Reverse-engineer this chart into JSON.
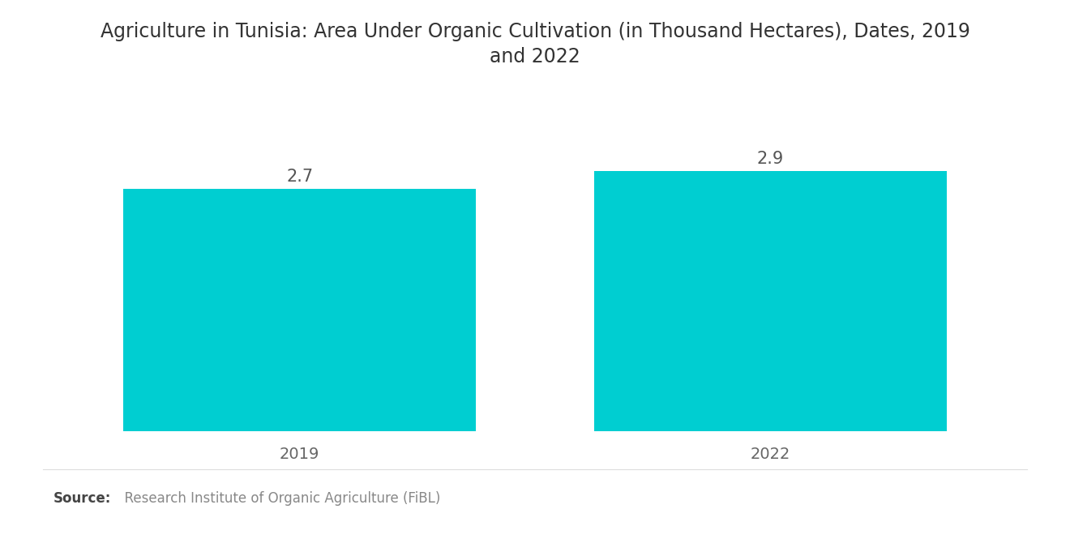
{
  "title": "Agriculture in Tunisia: Area Under Organic Cultivation (in Thousand Hectares), Dates, 2019\nand 2022",
  "categories": [
    "2019",
    "2022"
  ],
  "values": [
    2.7,
    2.9
  ],
  "bar_color": "#00CED1",
  "bar_positions": [
    1,
    3
  ],
  "bar_width": 1.5,
  "xlim": [
    0,
    4
  ],
  "value_label_fontsize": 15,
  "value_label_color": "#555555",
  "category_label_fontsize": 14,
  "category_label_color": "#666666",
  "title_fontsize": 17,
  "title_color": "#333333",
  "background_color": "#ffffff",
  "ylim": [
    0,
    3.6
  ],
  "source_bold": "Source:",
  "source_normal": "  Research Institute of Organic Agriculture (FiBL)",
  "source_fontsize": 12,
  "source_bold_color": "#444444",
  "source_normal_color": "#888888"
}
